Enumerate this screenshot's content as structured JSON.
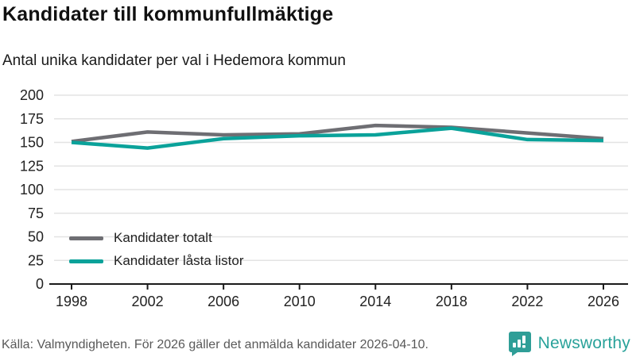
{
  "header": {
    "title": "Kandidater till kommunfullmäktige",
    "subtitle": "Antal unika kandidater per val i Hedemora kommun"
  },
  "chart_data": {
    "type": "line",
    "x": [
      "1998",
      "2002",
      "2006",
      "2010",
      "2014",
      "2018",
      "2022",
      "2026"
    ],
    "series": [
      {
        "name": "Kandidater totalt",
        "color": "#6e6e73",
        "values": [
          151,
          161,
          158,
          159,
          168,
          166,
          160,
          154
        ]
      },
      {
        "name": "Kandidater låsta listor",
        "color": "#0aa29a",
        "values": [
          150,
          144,
          154,
          157,
          158,
          165,
          153,
          152
        ]
      }
    ],
    "title": "Kandidater till kommunfullmäktige",
    "subtitle": "Antal unika kandidater per val i Hedemora kommun",
    "xlabel": "",
    "ylabel": "",
    "ylim": [
      0,
      200
    ],
    "yticks": [
      0,
      25,
      50,
      75,
      100,
      125,
      150,
      175,
      200
    ],
    "grid": true,
    "legend_position": "inside-bottom-left"
  },
  "colors": {
    "gridline": "#e3e3e3",
    "axis": "#1a1a1a",
    "tick_label": "#222222",
    "accent_teal": "#0aa29a",
    "line_gray": "#6e6e73",
    "brand_teal": "#2f9e97"
  },
  "footer": {
    "source": "Källa: Valmyndigheten. För 2026 gäller det anmälda kandidater 2026-04-10.",
    "brand": "Newsworthy"
  }
}
